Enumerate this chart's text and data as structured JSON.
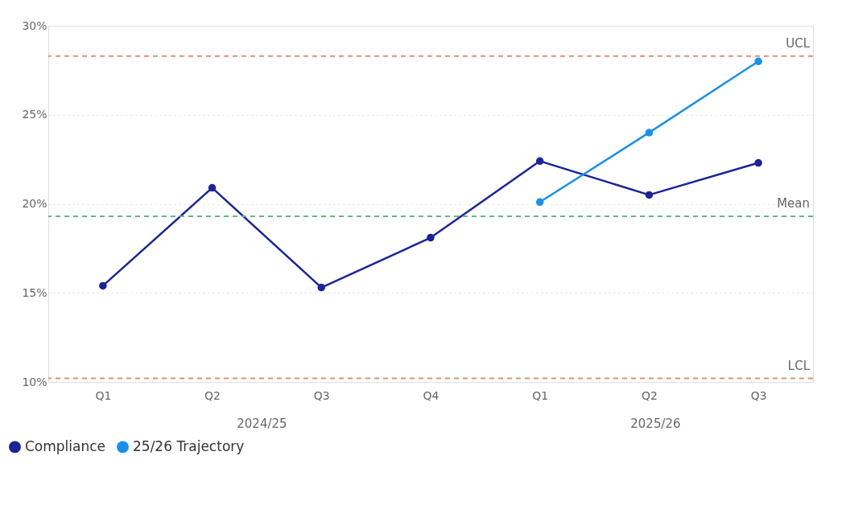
{
  "chart_data": {
    "type": "line",
    "categories": [
      "Q1",
      "Q2",
      "Q3",
      "Q4",
      "Q1",
      "Q2",
      "Q3"
    ],
    "series": [
      {
        "name": "Compliance",
        "color": "#1a2496",
        "values": [
          15.4,
          20.9,
          15.3,
          18.1,
          22.4,
          20.5,
          22.3
        ]
      },
      {
        "name": "25/26 Trajectory",
        "color": "#1a8fe8",
        "values": [
          null,
          null,
          null,
          null,
          20.1,
          24.0,
          28.0
        ]
      }
    ],
    "ylim": [
      10,
      30
    ],
    "yticks": [
      {
        "value": 10,
        "label": "10%"
      },
      {
        "value": 15,
        "label": "15%"
      },
      {
        "value": 20,
        "label": "20%"
      },
      {
        "value": 25,
        "label": "25%"
      },
      {
        "value": 30,
        "label": "30%"
      }
    ],
    "ref_lines": [
      {
        "axis": "y",
        "value": 28.3,
        "label": "UCL",
        "color": "#e0907a",
        "line_style": "dashed"
      },
      {
        "axis": "y",
        "value": 19.3,
        "label": "Mean",
        "color": "#5fb98a",
        "line_style": "dashed"
      },
      {
        "axis": "y",
        "value": 10.2,
        "label": "LCL",
        "color": "#e0907a",
        "line_style": "dashed"
      }
    ],
    "annotations": [
      "2024/25",
      "2025/26"
    ],
    "grid": "y",
    "legend": "bottom left",
    "marker": "circle",
    "line_style": "solid"
  }
}
